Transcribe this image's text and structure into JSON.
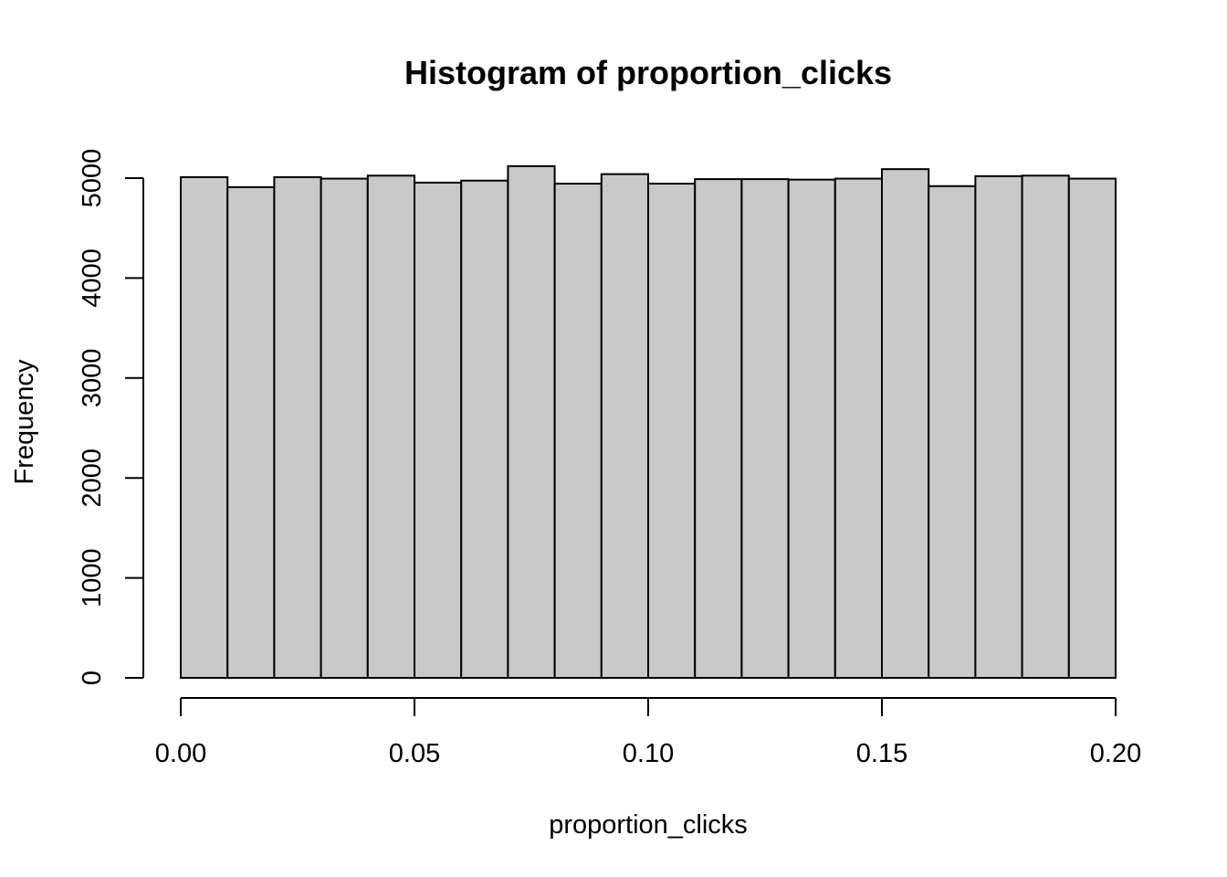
{
  "chart_data": {
    "type": "bar",
    "title": "Histogram of proportion_clicks",
    "xlabel": "proportion_clicks",
    "ylabel": "Frequency",
    "bins": [
      [
        0.0,
        0.01
      ],
      [
        0.01,
        0.02
      ],
      [
        0.02,
        0.03
      ],
      [
        0.03,
        0.04
      ],
      [
        0.04,
        0.05
      ],
      [
        0.05,
        0.06
      ],
      [
        0.06,
        0.07
      ],
      [
        0.07,
        0.08
      ],
      [
        0.08,
        0.09
      ],
      [
        0.09,
        0.1
      ],
      [
        0.1,
        0.11
      ],
      [
        0.11,
        0.12
      ],
      [
        0.12,
        0.13
      ],
      [
        0.13,
        0.14
      ],
      [
        0.14,
        0.15
      ],
      [
        0.15,
        0.16
      ],
      [
        0.16,
        0.17
      ],
      [
        0.17,
        0.18
      ],
      [
        0.18,
        0.19
      ],
      [
        0.19,
        0.2
      ]
    ],
    "values": [
      5010,
      4910,
      5010,
      4995,
      5025,
      4955,
      4975,
      5120,
      4945,
      5040,
      4945,
      4990,
      4990,
      4985,
      4995,
      5090,
      4920,
      5020,
      5025,
      4995
    ],
    "xlim": [
      0.0,
      0.2
    ],
    "ylim": [
      0,
      5000
    ],
    "xticks": [
      "0.00",
      "0.05",
      "0.10",
      "0.15",
      "0.20"
    ],
    "xtick_values": [
      0.0,
      0.05,
      0.1,
      0.15,
      0.2
    ],
    "yticks": [
      "0",
      "1000",
      "2000",
      "3000",
      "4000",
      "5000"
    ],
    "ytick_values": [
      0,
      1000,
      2000,
      3000,
      4000,
      5000
    ],
    "bar_fill": "#c9c9c9",
    "bar_stroke": "#000000",
    "grid": false,
    "legend": "none"
  }
}
